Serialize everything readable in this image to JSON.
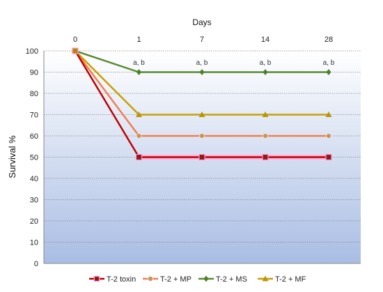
{
  "chart_data": {
    "type": "line",
    "title": "",
    "xlabel": "Days",
    "ylabel": "Survival %",
    "x_axis_position": "top",
    "categories": [
      "0",
      "1",
      "7",
      "14",
      "28"
    ],
    "ylim": [
      0,
      100
    ],
    "yticks": [
      0,
      10,
      20,
      30,
      40,
      50,
      60,
      70,
      80,
      90,
      100
    ],
    "grid": true,
    "legend_position": "bottom",
    "background": "vertical gradient, white at top to light blue at bottom",
    "series": [
      {
        "name": "T-2 toxin",
        "color": "#8B1A1A",
        "line_color": "#C00000",
        "marker": "square",
        "values": [
          100,
          50,
          50,
          50,
          50
        ]
      },
      {
        "name": "T-2 + MP",
        "color": "#C8955A",
        "line_color": "#F08050",
        "marker": "circle",
        "values": [
          100,
          60,
          60,
          60,
          60
        ]
      },
      {
        "name": "T-2 + MS",
        "color": "#4E7E2E",
        "line_color": "#5A8A30",
        "marker": "diamond",
        "values": [
          100,
          90,
          90,
          90,
          90
        ]
      },
      {
        "name": "T-2 + MF",
        "color": "#B8960A",
        "line_color": "#C8A000",
        "marker": "triangle",
        "values": [
          100,
          70,
          70,
          70,
          70
        ]
      }
    ],
    "annotations": [
      {
        "category": "1",
        "text": "a, b"
      },
      {
        "category": "7",
        "text": "a, b"
      },
      {
        "category": "14",
        "text": "a, b"
      },
      {
        "category": "28",
        "text": "a, b"
      }
    ]
  }
}
